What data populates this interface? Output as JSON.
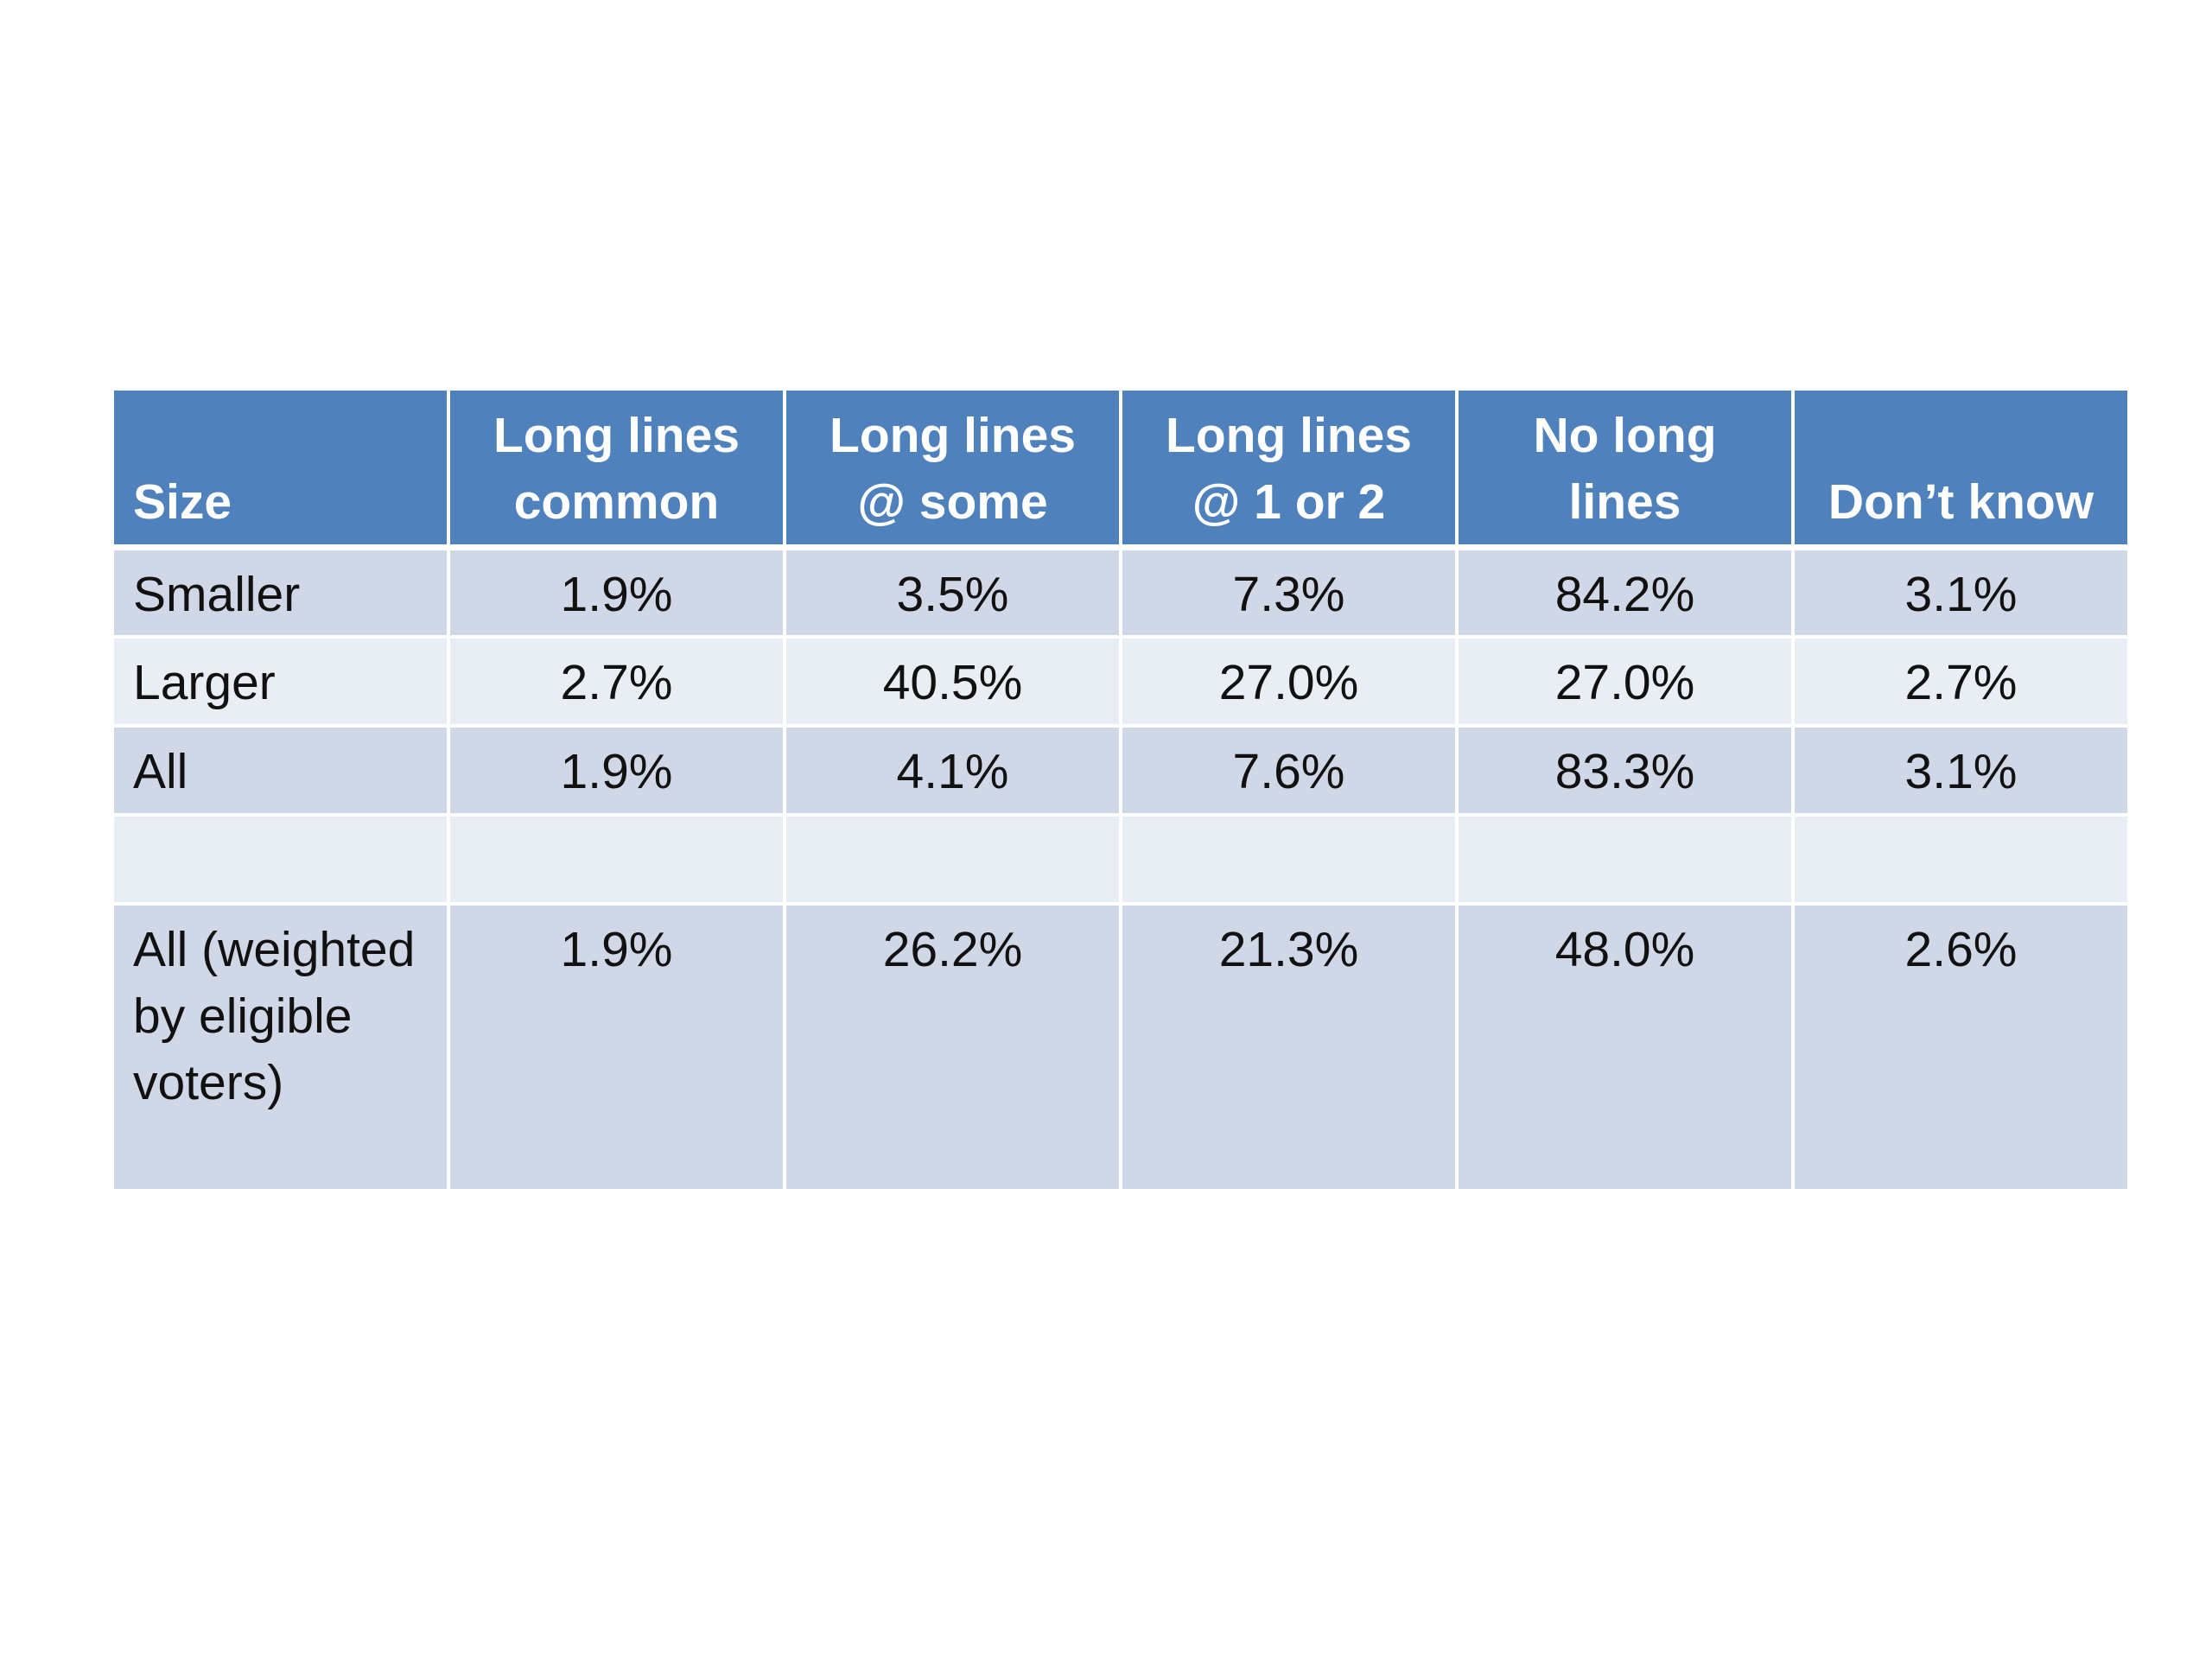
{
  "table": {
    "headers": [
      "Size",
      "Long lines common",
      "Long lines @ some",
      "Long lines @ 1 or 2",
      "No long lines",
      "Don’t know"
    ],
    "rows": [
      [
        "Smaller",
        "1.9%",
        "3.5%",
        "7.3%",
        "84.2%",
        "3.1%"
      ],
      [
        "Larger",
        "2.7%",
        "40.5%",
        "27.0%",
        "27.0%",
        "2.7%"
      ],
      [
        "All",
        "1.9%",
        "4.1%",
        "7.6%",
        "83.3%",
        "3.1%"
      ],
      [
        "",
        "",
        "",
        "",
        "",
        ""
      ],
      [
        "All (weighted by eligible voters)",
        "1.9%",
        "26.2%",
        "21.3%",
        "48.0%",
        "2.6%"
      ]
    ]
  },
  "colors": {
    "header_bg": "#4f81bd",
    "row_band_dark": "#d0d8e8",
    "row_band_light": "#e9edf4"
  }
}
